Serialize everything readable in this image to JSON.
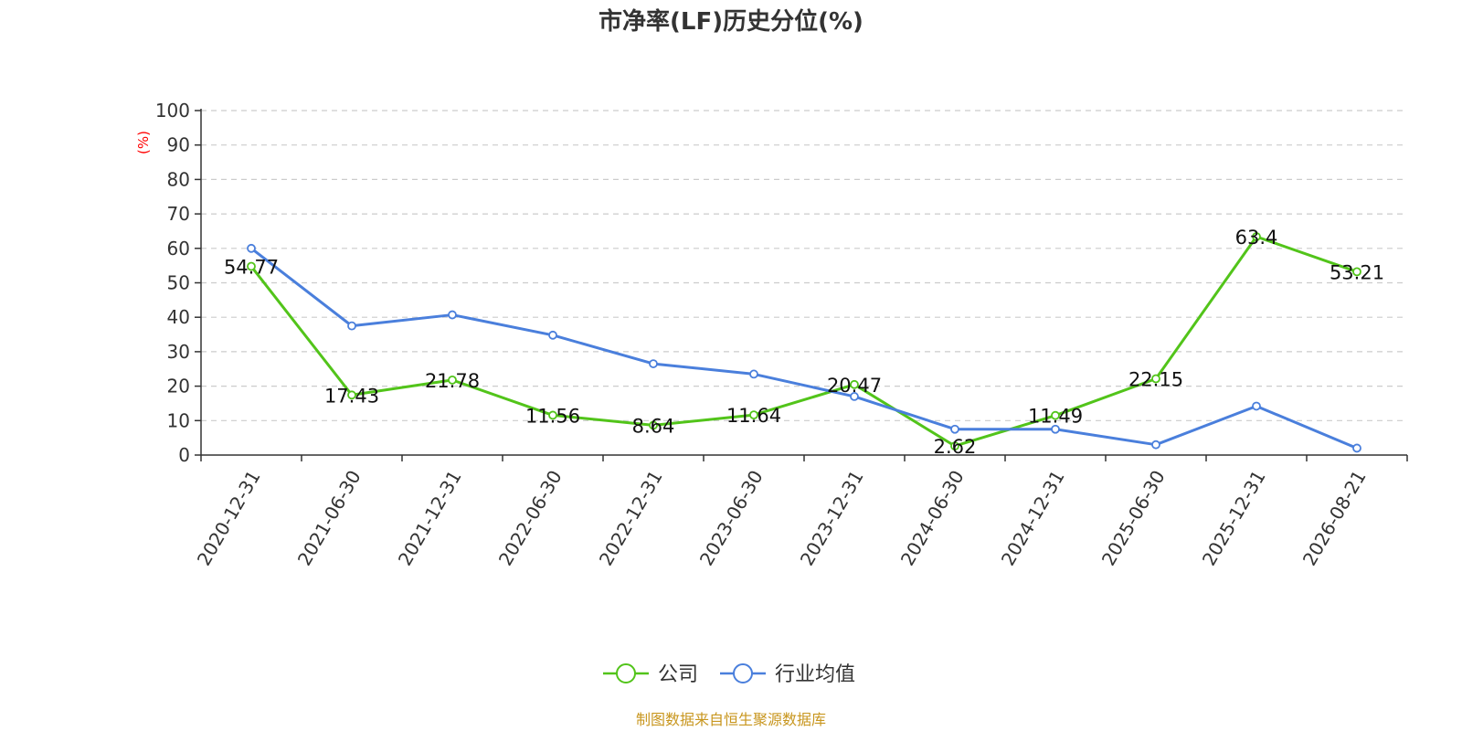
{
  "chart_data": {
    "type": "line",
    "title": "市净率(LF)历史分位(%)",
    "ylabel": "(%)",
    "ylim": [
      0,
      100
    ],
    "yticks": [
      0,
      10,
      20,
      30,
      40,
      50,
      60,
      70,
      80,
      90,
      100
    ],
    "grid": true,
    "legend_position": "bottom",
    "x": [
      "2020-12-31",
      "2021-06-30",
      "2021-12-31",
      "2022-06-30",
      "2022-12-31",
      "2023-06-30",
      "2023-12-31",
      "2024-06-30",
      "2024-12-31",
      "2025-06-30",
      "2025-12-31",
      "2026-08-21"
    ],
    "series": [
      {
        "name": "公司",
        "color": "#52c41a",
        "values": [
          54.77,
          17.43,
          21.78,
          11.56,
          8.64,
          11.64,
          20.47,
          2.62,
          11.49,
          22.15,
          63.4,
          53.21
        ],
        "labels": [
          "54.77",
          "17.43",
          "21.78",
          "11.56",
          "8.64",
          "11.64",
          "20.47",
          "2.62",
          "11.49",
          "22.15",
          "63.4",
          "53.21"
        ]
      },
      {
        "name": "行业均值",
        "color": "#4a7fdc",
        "values": [
          60,
          37.5,
          40.7,
          34.8,
          26.5,
          23.5,
          17,
          7.5,
          7.5,
          3,
          14.2,
          2
        ]
      }
    ]
  },
  "source": "制图数据来自恒生聚源数据库"
}
